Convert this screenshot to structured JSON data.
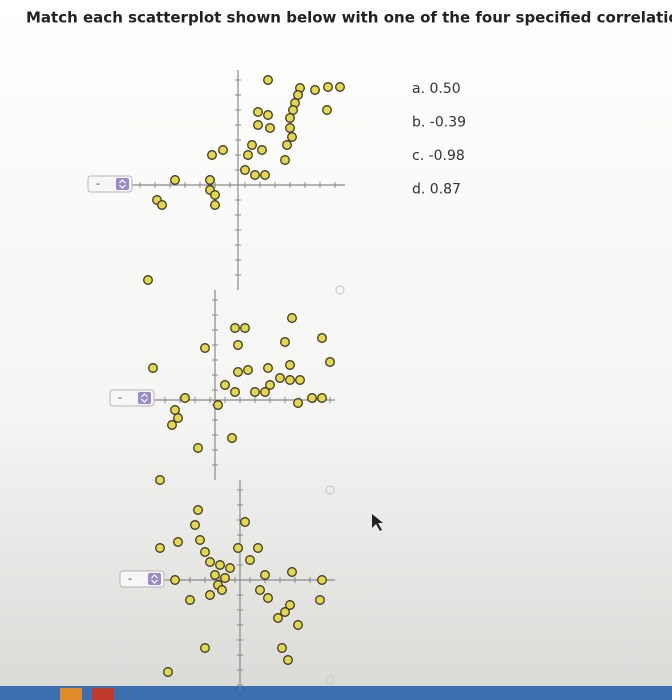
{
  "header": {
    "title": "Match each scatterplot shown below with one of the four specified correlations."
  },
  "options": [
    "a. 0.50",
    "b. -0.39",
    "c. -0.98",
    "d. 0.87"
  ],
  "plots": [
    {
      "selection": "-",
      "x": [
        3,
        7.7,
        9,
        10.2,
        6.2,
        6,
        5.7,
        8.9,
        5.5,
        2,
        3,
        5.2,
        2,
        3.2,
        5.2,
        5.4,
        4.9,
        1.4,
        2.4,
        1,
        -2.6,
        -1.5,
        4.7,
        0.7,
        1.7,
        2.7,
        -6.3,
        -2.8,
        -2.8,
        -2.3,
        -8.1,
        -7.6,
        -2.3
      ],
      "y": [
        10.5,
        9.5,
        9.8,
        9.8,
        9.7,
        9,
        8.2,
        7.5,
        7.5,
        7.3,
        7,
        6.7,
        6,
        5.7,
        5.7,
        4.8,
        4,
        4,
        3.5,
        3,
        3,
        3.5,
        2.5,
        1.5,
        1,
        1,
        0.5,
        0.5,
        -0.5,
        -1,
        -1.5,
        -2,
        -2
      ]
    },
    {
      "selection": "-",
      "x": [
        -6.7,
        7.7,
        2,
        3,
        10.7,
        -1,
        2.3,
        7,
        11.5,
        -6.2,
        3.3,
        5.3,
        7.5,
        2.3,
        1,
        2,
        4,
        5.5,
        6.5,
        7.5,
        8.5,
        5,
        8.3,
        9.7,
        10.7,
        -3,
        -4,
        -3.7,
        -4.3,
        1.7,
        -1.7,
        0.3,
        -5.5
      ],
      "y": [
        12,
        8.2,
        7.2,
        7.2,
        6.2,
        5.2,
        5.5,
        5.8,
        3.8,
        3.2,
        3,
        3.2,
        3.5,
        2.8,
        1.5,
        0.8,
        0.8,
        1.5,
        2.2,
        2,
        2,
        0.8,
        -0.3,
        0.2,
        0.2,
        0.2,
        -1,
        -1.8,
        -2.5,
        -3.8,
        -4.8,
        -0.5,
        -8
      ]
    },
    {
      "selection": "-",
      "x": [
        -4.2,
        0.5,
        -4.5,
        -4,
        -8,
        -6.2,
        -0.2,
        1.8,
        -3.5,
        -3,
        -2,
        -1,
        1,
        -2.5,
        -1.5,
        -2.2,
        -1.8,
        -3,
        2.5,
        5.2,
        8.2,
        -6.5,
        -5,
        2,
        2.8,
        5,
        8,
        3.8,
        4.5,
        5.8,
        4.2,
        4.8,
        -3.5,
        -7.2
      ],
      "y": [
        7,
        5.8,
        5.5,
        4,
        3.2,
        3.8,
        3.2,
        3.2,
        2.8,
        1.8,
        1.5,
        1.2,
        2,
        0.5,
        0.2,
        -0.5,
        -1,
        -1.5,
        0.5,
        0.8,
        0,
        0,
        -2,
        -1,
        -1.8,
        -2.5,
        -2,
        -3.8,
        -3.2,
        -4.5,
        -6.8,
        -8,
        -6.8,
        -9.2
      ]
    }
  ]
}
